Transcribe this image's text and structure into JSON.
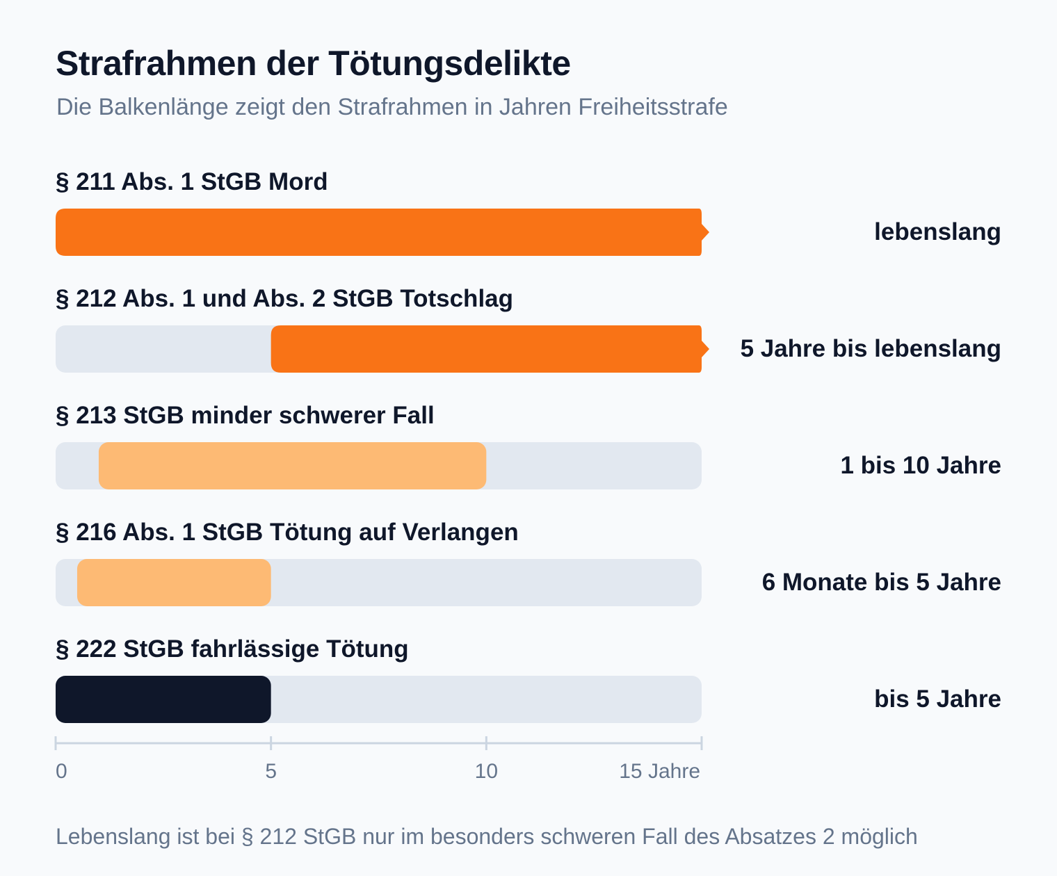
{
  "title": "Strafrahmen der Tötungsdelikte",
  "subtitle": "Die Balkenlänge zeigt den Strafrahmen in Jahren Freiheitsstrafe",
  "footnote": "Lebenslang ist bei § 212 StGB nur im besonders schweren Fall des Absatzes 2 möglich",
  "colors": {
    "background": "#f8fafc",
    "track": "#e2e8f0",
    "strong": "#f97316",
    "light": "#fdba74",
    "dark": "#0f172a",
    "axis": "#cbd5e1",
    "muted": "#64748b"
  },
  "chart_data": {
    "type": "bar",
    "orientation": "horizontal",
    "title": "Strafrahmen der Tötungsdelikte",
    "subtitle": "Die Balkenlänge zeigt den Strafrahmen in Jahren Freiheitsstrafe",
    "xlim": [
      0,
      15
    ],
    "xticks": [
      {
        "value": 0,
        "label": "0"
      },
      {
        "value": 5,
        "label": "5"
      },
      {
        "value": 10,
        "label": "10"
      },
      {
        "value": 15,
        "label": "15 Jahre"
      }
    ],
    "grid": false,
    "legend": "none",
    "rows": [
      {
        "label": "§ 211 Abs. 1 StGB Mord",
        "start": 0,
        "end": 15,
        "open_end": true,
        "color": "#f97316",
        "value_label": "lebenslang"
      },
      {
        "label": "§ 212 Abs. 1 und Abs. 2 StGB Totschlag",
        "start": 5,
        "end": 15,
        "open_end": true,
        "color": "#f97316",
        "value_label": "5 Jahre bis lebenslang"
      },
      {
        "label": "§ 213 StGB minder schwerer Fall",
        "start": 1,
        "end": 10,
        "open_end": false,
        "color": "#fdba74",
        "value_label": "1 bis 10 Jahre"
      },
      {
        "label": "§ 216 Abs. 1 StGB Tötung auf Verlangen",
        "start": 0.5,
        "end": 5,
        "open_end": false,
        "color": "#fdba74",
        "value_label": "6 Monate bis 5 Jahre"
      },
      {
        "label": "§ 222 StGB fahrlässige Tötung",
        "start": 0,
        "end": 5,
        "open_end": false,
        "color": "#0f172a",
        "value_label": "bis 5 Jahre"
      }
    ]
  }
}
